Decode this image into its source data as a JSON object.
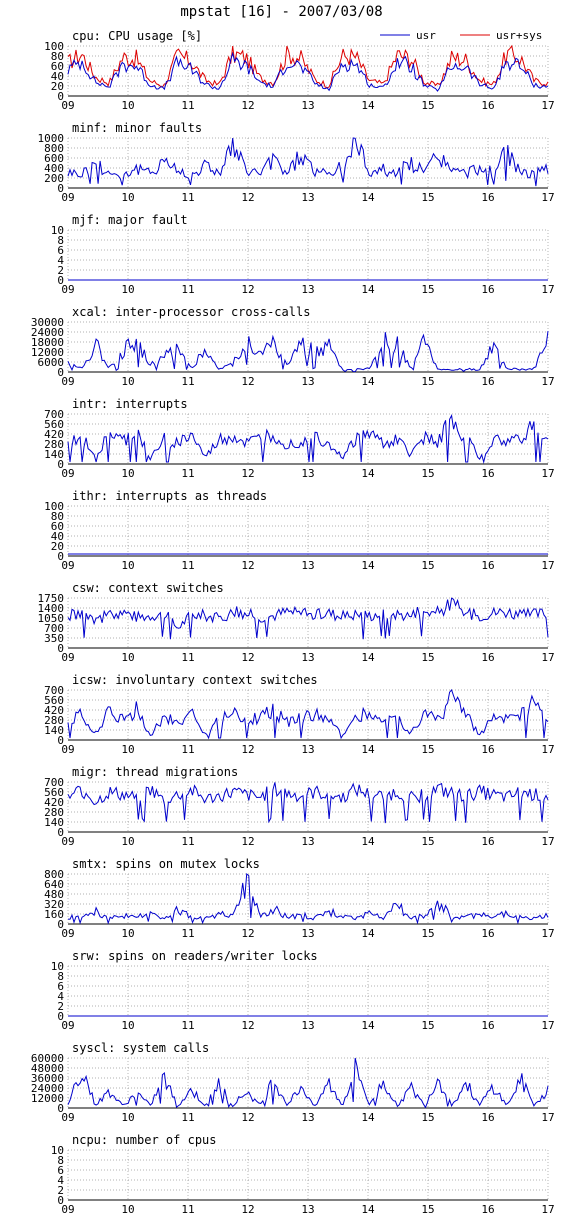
{
  "title": "mpstat [16] - 2007/03/08",
  "colors": {
    "usr": "#0000cc",
    "usr_sys": "#dd0000",
    "grid": "#999999",
    "axis": "#000000"
  },
  "legend": {
    "usr": "usr",
    "usr_sys": "usr+sys"
  },
  "x_ticks": [
    "09",
    "10",
    "11",
    "12",
    "13",
    "14",
    "15",
    "16",
    "17"
  ],
  "chart_data": [
    {
      "id": "cpu",
      "type": "line",
      "title": "cpu: CPU usage [%]",
      "ylim": [
        0,
        100
      ],
      "yticks": [
        "100",
        "80",
        "60",
        "40",
        "20",
        "0"
      ],
      "profile": "cpu",
      "series": [
        {
          "name": "usr",
          "color": "#0000cc",
          "values": [
            52,
            70,
            28,
            18,
            64,
            60,
            22,
            14,
            68,
            52,
            24,
            14,
            70,
            60,
            28,
            18,
            72,
            58,
            26,
            12,
            66,
            64,
            22,
            16,
            68,
            60,
            20,
            12,
            62,
            58,
            24,
            14,
            70,
            60,
            22,
            18
          ]
        },
        {
          "name": "usr+sys",
          "color": "#dd0000",
          "values": [
            66,
            84,
            38,
            26,
            78,
            74,
            30,
            20,
            82,
            68,
            32,
            22,
            84,
            76,
            36,
            26,
            86,
            74,
            34,
            20,
            80,
            78,
            30,
            24,
            82,
            76,
            28,
            20,
            78,
            72,
            32,
            22,
            84,
            76,
            30,
            26
          ]
        }
      ]
    },
    {
      "id": "minf",
      "type": "line",
      "title": "minf: minor faults",
      "ylim": [
        0,
        1000
      ],
      "yticks": [
        "1000",
        "800",
        "600",
        "400",
        "200",
        "0"
      ],
      "profile": "spiky",
      "series": [
        {
          "name": "",
          "color": "#0000cc",
          "values": [
            320,
            280,
            520,
            300,
            260,
            380,
            290,
            600,
            330,
            270,
            460,
            310,
            820,
            350,
            290,
            560,
            300,
            680,
            330,
            270,
            420,
            960,
            310,
            380,
            290,
            520,
            300,
            680,
            340,
            290,
            410,
            320,
            700,
            310,
            280,
            360
          ]
        }
      ]
    },
    {
      "id": "mjf",
      "type": "line",
      "title": "mjf: major fault",
      "ylim": [
        0,
        10
      ],
      "yticks": [
        "10",
        "8",
        "6",
        "4",
        "2",
        "0"
      ],
      "profile": "flat",
      "series": [
        {
          "name": "",
          "color": "#0000cc",
          "values": [
            0,
            0,
            0,
            0,
            0,
            0,
            0,
            0,
            0,
            0,
            0,
            0,
            0,
            0,
            0,
            0,
            0,
            0,
            0,
            0,
            0,
            0,
            0,
            0,
            0,
            0,
            0,
            0,
            0,
            0,
            0,
            0,
            0,
            0,
            0,
            0
          ]
        }
      ]
    },
    {
      "id": "xcal",
      "type": "line",
      "title": "xcal: inter-processor cross-calls",
      "ylim": [
        0,
        30000
      ],
      "yticks": [
        "30000",
        "24000",
        "18000",
        "12000",
        "6000",
        "0"
      ],
      "profile": "spiky",
      "series": [
        {
          "name": "",
          "color": "#0000cc",
          "values": [
            6000,
            2000,
            17000,
            3000,
            12000,
            20000,
            4000,
            9000,
            15000,
            2000,
            14000,
            1500,
            5000,
            19000,
            10000,
            17000,
            3000,
            18000,
            12000,
            16000,
            1000,
            1500,
            2000,
            18000,
            16000,
            2000,
            19000,
            1500,
            1000,
            2000,
            1000,
            16000,
            2000,
            1500,
            2000,
            19000
          ]
        }
      ]
    },
    {
      "id": "intr",
      "type": "line",
      "title": "intr: interrupts",
      "ylim": [
        0,
        700
      ],
      "yticks": [
        "700",
        "560",
        "420",
        "280",
        "140",
        "0"
      ],
      "profile": "block",
      "series": [
        {
          "name": "",
          "color": "#0000cc",
          "values": [
            260,
            380,
            120,
            420,
            300,
            460,
            80,
            340,
            280,
            400,
            90,
            320,
            380,
            280,
            340,
            420,
            260,
            320,
            380,
            300,
            80,
            360,
            420,
            280,
            340,
            120,
            400,
            300,
            640,
            380,
            90,
            320,
            300,
            360,
            560,
            300
          ]
        }
      ]
    },
    {
      "id": "ithr",
      "type": "line",
      "title": "ithr: interrupts as threads",
      "ylim": [
        0,
        100
      ],
      "yticks": [
        "100",
        "80",
        "60",
        "40",
        "20",
        "0"
      ],
      "profile": "flat",
      "series": [
        {
          "name": "",
          "color": "#0000cc",
          "values": [
            4,
            4,
            4,
            4,
            4,
            4,
            4,
            4,
            4,
            4,
            4,
            4,
            4,
            4,
            4,
            4,
            4,
            4,
            4,
            4,
            4,
            4,
            4,
            4,
            4,
            4,
            4,
            4,
            4,
            4,
            4,
            4,
            4,
            4,
            4,
            4
          ]
        }
      ]
    },
    {
      "id": "csw",
      "type": "line",
      "title": "csw: context switches",
      "ylim": [
        0,
        1750
      ],
      "yticks": [
        "1750",
        "1400",
        "1050",
        "700",
        "350",
        "0"
      ],
      "profile": "dips",
      "series": [
        {
          "name": "",
          "color": "#0000cc",
          "values": [
            1150,
            1250,
            900,
            1200,
            1300,
            1100,
            1150,
            1250,
            700,
            1200,
            1150,
            1050,
            1250,
            1200,
            1100,
            1150,
            1300,
            1200,
            1150,
            1250,
            1100,
            1200,
            1150,
            1250,
            1200,
            1150,
            1300,
            1250,
            1600,
            1200,
            1150,
            1250,
            1300,
            1150,
            1200,
            1250
          ]
        }
      ]
    },
    {
      "id": "icsw",
      "type": "line",
      "title": "icsw: involuntary context switches",
      "ylim": [
        0,
        700
      ],
      "yticks": [
        "700",
        "560",
        "420",
        "280",
        "140",
        "0"
      ],
      "profile": "block",
      "series": [
        {
          "name": "",
          "color": "#0000cc",
          "values": [
            240,
            360,
            100,
            400,
            280,
            440,
            60,
            320,
            260,
            380,
            70,
            300,
            360,
            260,
            320,
            400,
            240,
            300,
            360,
            280,
            60,
            340,
            400,
            260,
            320,
            100,
            380,
            280,
            620,
            360,
            70,
            300,
            280,
            340,
            540,
            280
          ]
        }
      ]
    },
    {
      "id": "migr",
      "type": "line",
      "title": "migr: thread migrations",
      "ylim": [
        0,
        700
      ],
      "yticks": [
        "700",
        "560",
        "420",
        "280",
        "140",
        "0"
      ],
      "profile": "dips",
      "series": [
        {
          "name": "",
          "color": "#0000cc",
          "values": [
            480,
            600,
            420,
            560,
            520,
            480,
            600,
            440,
            520,
            580,
            460,
            500,
            560,
            520,
            480,
            600,
            540,
            500,
            560,
            520,
            480,
            600,
            520,
            500,
            560,
            480,
            520,
            600,
            540,
            500,
            560,
            520,
            480,
            560,
            520,
            500
          ]
        }
      ]
    },
    {
      "id": "smtx",
      "type": "line",
      "title": "smtx: spins on mutex locks",
      "ylim": [
        0,
        800
      ],
      "yticks": [
        "800",
        "640",
        "480",
        "320",
        "160",
        "0"
      ],
      "profile": "spiky",
      "series": [
        {
          "name": "",
          "color": "#0000cc",
          "values": [
            120,
            90,
            200,
            80,
            140,
            100,
            180,
            70,
            220,
            110,
            90,
            160,
            120,
            680,
            130,
            260,
            100,
            150,
            90,
            200,
            120,
            80,
            170,
            110,
            300,
            90,
            140,
            340,
            120,
            100,
            160,
            80,
            190,
            110,
            90,
            150
          ]
        }
      ]
    },
    {
      "id": "srw",
      "type": "line",
      "title": "srw: spins on readers/writer locks",
      "ylim": [
        0,
        10
      ],
      "yticks": [
        "10",
        "8",
        "6",
        "4",
        "2",
        "0"
      ],
      "profile": "flat",
      "series": [
        {
          "name": "",
          "color": "#0000cc",
          "values": [
            0,
            0,
            0,
            0,
            0,
            0,
            0,
            0,
            0,
            0,
            0,
            0,
            0,
            0,
            0,
            0,
            0,
            0,
            0,
            0,
            0,
            0,
            0,
            0,
            0,
            0,
            0,
            0,
            0,
            0,
            0,
            0,
            0,
            0,
            0,
            0
          ]
        }
      ]
    },
    {
      "id": "syscl",
      "type": "line",
      "title": "syscl: system calls",
      "ylim": [
        0,
        60000
      ],
      "yticks": [
        "60000",
        "48000",
        "36000",
        "24000",
        "12000",
        "0"
      ],
      "profile": "spiky",
      "series": [
        {
          "name": "",
          "color": "#0000cc",
          "values": [
            4000,
            48000,
            3000,
            20000,
            2500,
            18000,
            3000,
            36000,
            2500,
            22000,
            3000,
            30000,
            2500,
            20000,
            3000,
            34000,
            3500,
            26000,
            3000,
            30000,
            2500,
            50000,
            3000,
            32000,
            2500,
            24000,
            3000,
            36000,
            2500,
            30000,
            3000,
            26000,
            2500,
            34000,
            3000,
            22000
          ]
        }
      ]
    },
    {
      "id": "ncpu",
      "type": "line",
      "title": "ncpu: number of cpus",
      "ylim": [
        0,
        10
      ],
      "yticks": [
        "10",
        "8",
        "6",
        "4",
        "2",
        "0"
      ],
      "profile": "flat",
      "series": [
        {
          "name": "",
          "color": "#000000",
          "values": [
            0,
            0,
            0,
            0,
            0,
            0,
            0,
            0,
            0,
            0,
            0,
            0,
            0,
            0,
            0,
            0,
            0,
            0,
            0,
            0,
            0,
            0,
            0,
            0,
            0,
            0,
            0,
            0,
            0,
            0,
            0,
            0,
            0,
            0,
            0,
            0
          ]
        }
      ]
    }
  ]
}
